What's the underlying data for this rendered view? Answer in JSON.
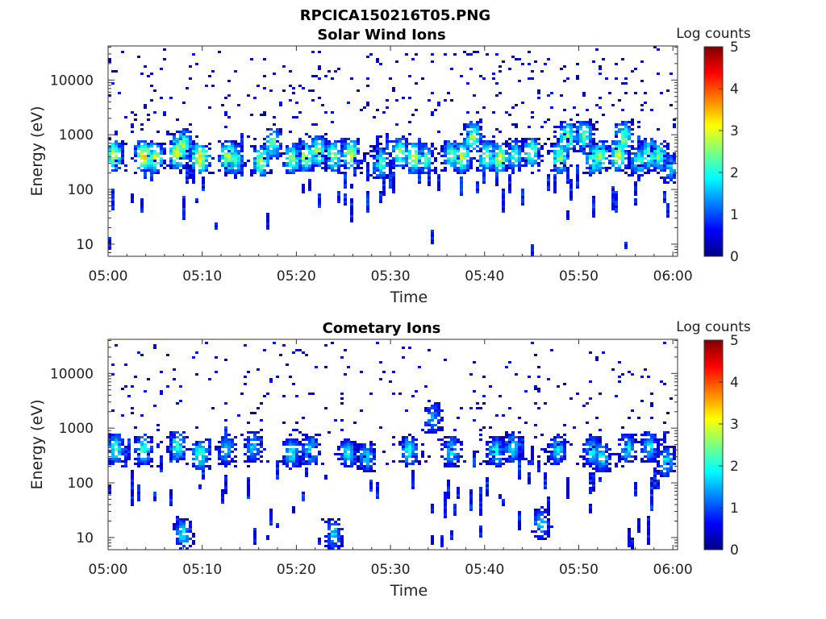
{
  "figure": {
    "filename": "RPCICA150216T05.PNG"
  },
  "colors": {
    "colormap": [
      "#00007f",
      "#0000ff",
      "#007fff",
      "#00ffff",
      "#7fff7f",
      "#ffff00",
      "#ff7f00",
      "#ff0000",
      "#7f0000"
    ]
  },
  "chart_data": [
    {
      "type": "heatmap",
      "title": "Solar Wind Ions",
      "xlabel": "Time",
      "ylabel": "Energy (eV)",
      "x_ticks": [
        "05:00",
        "05:10",
        "05:20",
        "05:30",
        "05:40",
        "05:50",
        "06:00"
      ],
      "x_range_minutes": [
        0,
        60.5
      ],
      "y_scale": "log",
      "y_range": [
        6,
        42000
      ],
      "y_ticks": [
        {
          "value": 10,
          "label": "10"
        },
        {
          "value": 100,
          "label": "100"
        },
        {
          "value": 1000,
          "label": "1000"
        },
        {
          "value": 10000,
          "label": "10000"
        }
      ],
      "colorbar": {
        "label": "Log counts",
        "range": [
          0,
          5
        ],
        "ticks": [
          "0",
          "1",
          "2",
          "3",
          "4",
          "5"
        ]
      },
      "clusters": [
        {
          "t": 0.6,
          "e": 420,
          "c": 3.2
        },
        {
          "t": 3.8,
          "e": 400,
          "c": 3.6
        },
        {
          "t": 5.0,
          "e": 380,
          "c": 3.0
        },
        {
          "t": 7.4,
          "e": 470,
          "c": 3.4
        },
        {
          "t": 8.0,
          "e": 650,
          "c": 3.0
        },
        {
          "t": 9.8,
          "e": 380,
          "c": 3.7
        },
        {
          "t": 12.8,
          "e": 400,
          "c": 3.1
        },
        {
          "t": 13.5,
          "e": 350,
          "c": 2.5
        },
        {
          "t": 16.3,
          "e": 330,
          "c": 3.0
        },
        {
          "t": 17.5,
          "e": 700,
          "c": 2.6
        },
        {
          "t": 19.6,
          "e": 360,
          "c": 2.8
        },
        {
          "t": 21.0,
          "e": 400,
          "c": 3.0
        },
        {
          "t": 22.3,
          "e": 480,
          "c": 2.9
        },
        {
          "t": 24.0,
          "e": 420,
          "c": 2.8
        },
        {
          "t": 25.8,
          "e": 430,
          "c": 3.1
        },
        {
          "t": 29.0,
          "e": 300,
          "c": 2.4
        },
        {
          "t": 31.0,
          "e": 470,
          "c": 2.8
        },
        {
          "t": 32.5,
          "e": 380,
          "c": 3.1
        },
        {
          "t": 33.7,
          "e": 360,
          "c": 2.4
        },
        {
          "t": 36.5,
          "e": 420,
          "c": 2.7
        },
        {
          "t": 37.6,
          "e": 390,
          "c": 3.1
        },
        {
          "t": 38.8,
          "e": 900,
          "c": 2.9
        },
        {
          "t": 40.2,
          "e": 400,
          "c": 2.8
        },
        {
          "t": 41.6,
          "e": 380,
          "c": 3.2
        },
        {
          "t": 43.2,
          "e": 420,
          "c": 2.3
        },
        {
          "t": 45.0,
          "e": 470,
          "c": 2.8
        },
        {
          "t": 48.0,
          "e": 380,
          "c": 2.8
        },
        {
          "t": 48.8,
          "e": 900,
          "c": 2.9
        },
        {
          "t": 50.6,
          "e": 950,
          "c": 2.6
        },
        {
          "t": 51.6,
          "e": 360,
          "c": 2.7
        },
        {
          "t": 52.2,
          "e": 400,
          "c": 2.9
        },
        {
          "t": 54.2,
          "e": 420,
          "c": 3.1
        },
        {
          "t": 54.8,
          "e": 900,
          "c": 2.8
        },
        {
          "t": 56.4,
          "e": 330,
          "c": 2.3
        },
        {
          "t": 57.5,
          "e": 450,
          "c": 2.8
        },
        {
          "t": 58.5,
          "e": 400,
          "c": 2.6
        },
        {
          "t": 59.8,
          "e": 250,
          "c": 1.8
        }
      ],
      "seed": 11,
      "scatter_density": 1.0,
      "low_energy_density": 0.5
    },
    {
      "type": "heatmap",
      "title": "Cometary Ions",
      "xlabel": "Time",
      "ylabel": "Energy (eV)",
      "x_ticks": [
        "05:00",
        "05:10",
        "05:20",
        "05:30",
        "05:40",
        "05:50",
        "06:00"
      ],
      "x_range_minutes": [
        0,
        60.5
      ],
      "y_scale": "log",
      "y_range": [
        6,
        42000
      ],
      "y_ticks": [
        {
          "value": 10,
          "label": "10"
        },
        {
          "value": 100,
          "label": "100"
        },
        {
          "value": 1000,
          "label": "1000"
        },
        {
          "value": 10000,
          "label": "10000"
        }
      ],
      "colorbar": {
        "label": "Log counts",
        "range": [
          0,
          5
        ],
        "ticks": [
          "0",
          "1",
          "2",
          "3",
          "4",
          "5"
        ]
      },
      "clusters": [
        {
          "t": 0.8,
          "e": 420,
          "c": 2.3
        },
        {
          "t": 3.8,
          "e": 400,
          "c": 2.4
        },
        {
          "t": 7.4,
          "e": 470,
          "c": 2.3
        },
        {
          "t": 8.0,
          "e": 12,
          "c": 2.0
        },
        {
          "t": 9.8,
          "e": 330,
          "c": 2.4
        },
        {
          "t": 12.6,
          "e": 400,
          "c": 1.8
        },
        {
          "t": 15.4,
          "e": 450,
          "c": 1.7
        },
        {
          "t": 19.5,
          "e": 350,
          "c": 2.0
        },
        {
          "t": 21.5,
          "e": 400,
          "c": 2.1
        },
        {
          "t": 24.0,
          "e": 12,
          "c": 1.8
        },
        {
          "t": 25.5,
          "e": 350,
          "c": 2.0
        },
        {
          "t": 27.5,
          "e": 300,
          "c": 1.9
        },
        {
          "t": 32.0,
          "e": 380,
          "c": 2.1
        },
        {
          "t": 34.5,
          "e": 1500,
          "c": 1.6
        },
        {
          "t": 36.5,
          "e": 380,
          "c": 2.0
        },
        {
          "t": 41.2,
          "e": 380,
          "c": 2.1
        },
        {
          "t": 43.0,
          "e": 450,
          "c": 2.0
        },
        {
          "t": 46.0,
          "e": 18,
          "c": 1.7
        },
        {
          "t": 47.8,
          "e": 400,
          "c": 1.9
        },
        {
          "t": 51.4,
          "e": 380,
          "c": 2.0
        },
        {
          "t": 52.4,
          "e": 300,
          "c": 2.1
        },
        {
          "t": 55.2,
          "e": 420,
          "c": 2.0
        },
        {
          "t": 57.5,
          "e": 450,
          "c": 2.0
        },
        {
          "t": 59.3,
          "e": 250,
          "c": 1.9
        }
      ],
      "seed": 29,
      "scatter_density": 0.7,
      "low_energy_density": 1.1
    }
  ]
}
